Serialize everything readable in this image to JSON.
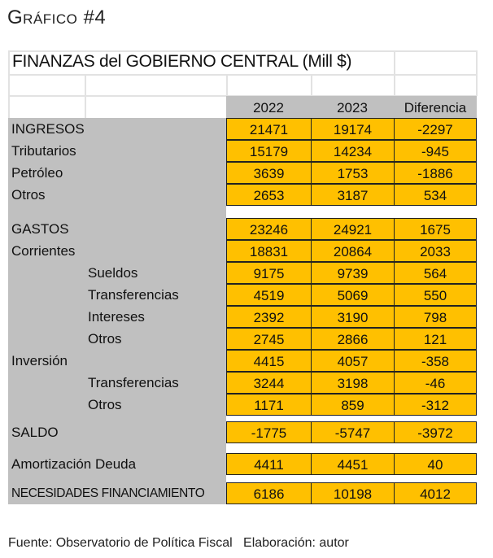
{
  "heading": {
    "first": "G",
    "rest": "RÁFICO",
    "num": "#4"
  },
  "table": {
    "title": "FINANZAS del GOBIERNO CENTRAL (Mill $)",
    "columns": [
      "2022",
      "2023",
      "Diferencia"
    ],
    "rows": [
      {
        "label": "INGRESOS",
        "values": [
          "21471",
          "19174",
          "-2297"
        ],
        "indent": 0
      },
      {
        "label": "Tributarios",
        "values": [
          "15179",
          "14234",
          "-945"
        ],
        "indent": 0
      },
      {
        "label": "Petróleo",
        "values": [
          "3639",
          "1753",
          "-1886"
        ],
        "indent": 0
      },
      {
        "label": "Otros",
        "values": [
          "2653",
          "3187",
          "534"
        ],
        "indent": 0
      },
      {
        "label": "GASTOS",
        "values": [
          "23246",
          "24921",
          "1675"
        ],
        "indent": 0
      },
      {
        "label": "Corrientes",
        "values": [
          "18831",
          "20864",
          "2033"
        ],
        "indent": 0
      },
      {
        "label": "Sueldos",
        "values": [
          "9175",
          "9739",
          "564"
        ],
        "indent": 1
      },
      {
        "label": "Transferencias",
        "values": [
          "4519",
          "5069",
          "550"
        ],
        "indent": 1
      },
      {
        "label": "Intereses",
        "values": [
          "2392",
          "3190",
          "798"
        ],
        "indent": 1
      },
      {
        "label": "Otros",
        "values": [
          "2745",
          "2866",
          "121"
        ],
        "indent": 1
      },
      {
        "label": "Inversión",
        "values": [
          "4415",
          "4057",
          "-358"
        ],
        "indent": 0
      },
      {
        "label": "Transferencias",
        "values": [
          "3244",
          "3198",
          "-46"
        ],
        "indent": 1
      },
      {
        "label": "Otros",
        "values": [
          "1171",
          "859",
          "-312"
        ],
        "indent": 1
      },
      {
        "label": "SALDO",
        "values": [
          "-1775",
          "-5747",
          "-3972"
        ],
        "indent": 0
      },
      {
        "label": "Amortización Deuda",
        "values": [
          "4411",
          "4451",
          "40"
        ],
        "indent": 0
      },
      {
        "label": "NECESIDADES FINANCIAMIENTO",
        "values": [
          "6186",
          "10198",
          "4012"
        ],
        "indent": 0
      }
    ]
  },
  "footer": "Fuente: Observatorio de Política Fiscal   Elaboración: autor",
  "colors": {
    "cell": "#ffc000",
    "gray": "#c0c0c0"
  }
}
